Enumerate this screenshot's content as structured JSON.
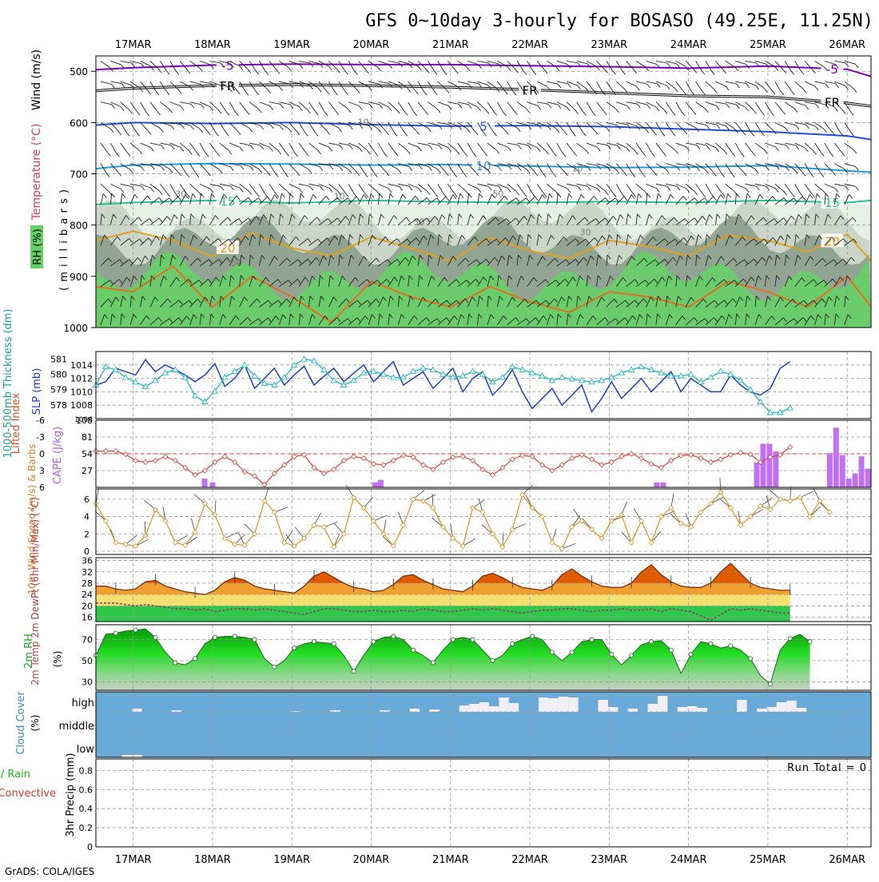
{
  "title": "GFS 0~10day 3-hourly for BOSASO (49.25E, 11.25N)",
  "credit": "GrADS: COLA/IGES",
  "colors": {
    "rh_dark": "#8ca08c",
    "rh_mid": "#c6d3c6",
    "rh_light": "#e6f0e6",
    "rh_green": "#66d066",
    "t_m5": "#8000c0",
    "t_0": "#000000",
    "t_5": "#1f4fd8",
    "t_10": "#1e9be0",
    "t_15": "#1fc78a",
    "t_20": "#e0a020",
    "t_25": "#e07020",
    "t_30": "#e0208a",
    "slp": "#1f3fc8",
    "thick": "#20b8b8",
    "li": "#e04040",
    "cape": "#c070f0",
    "wind10": "#e09020",
    "temp_fill_hot": "#e05a00",
    "temp_fill_warm": "#f0a030",
    "temp_fill_mild": "#f4e070",
    "temp_fill_cool": "#2fc84a",
    "rh2m": "#22cc22",
    "cloud": "#6aaad8",
    "cloud_gap": "#f2eef6",
    "grid": "#999999"
  },
  "chart_data": [
    {
      "type": "area",
      "panel": "upper-air",
      "title": "GFS 0~10day 3-hourly for BOSASO (49.25E, 11.25N)",
      "x_labels": [
        "17MAR",
        "18MAR",
        "19MAR",
        "20MAR",
        "21MAR",
        "22MAR",
        "23MAR",
        "24MAR",
        "25MAR",
        "26MAR"
      ],
      "xlim": [
        -0.47,
        9.3
      ],
      "ylabel_parts": [
        "RH (%)",
        "Temperature (°C)",
        "Wind (m/s)",
        "( m i l l i b a r s )"
      ],
      "yticks": [
        500,
        600,
        700,
        800,
        900,
        1000
      ],
      "ylim": [
        1000,
        470
      ],
      "rh_contour_labels": [
        "30",
        "50",
        "30",
        "50",
        "30",
        "10",
        "10",
        "10"
      ],
      "isotherms": [
        {
          "name": "-5",
          "labels": [
            "-5",
            "-5"
          ],
          "x": [
            -0.47,
            0,
            1,
            2,
            3,
            4,
            5,
            6,
            7,
            8,
            9,
            9.3
          ],
          "y": [
            497,
            493,
            488,
            486,
            487,
            487,
            489,
            491,
            494,
            490,
            496,
            510
          ]
        },
        {
          "name": "FR",
          "labels": [
            "FR",
            "FR",
            "FR"
          ],
          "x": [
            -0.47,
            0,
            1,
            2,
            3,
            4,
            5,
            6,
            7,
            8,
            9,
            9.3
          ],
          "y": [
            538,
            533,
            528,
            526,
            528,
            531,
            536,
            542,
            548,
            550,
            562,
            568
          ]
        },
        {
          "name": "5",
          "labels": [
            "5"
          ],
          "x": [
            -0.47,
            0,
            1,
            2,
            3,
            4,
            5,
            6,
            7,
            8,
            9,
            9.3
          ],
          "y": [
            605,
            600,
            602,
            600,
            604,
            607,
            606,
            608,
            613,
            618,
            626,
            633
          ]
        },
        {
          "name": "10",
          "labels": [
            "10"
          ],
          "x": [
            -0.47,
            0,
            1,
            2,
            3,
            4,
            5,
            6,
            7,
            8,
            9,
            9.3
          ],
          "y": [
            690,
            683,
            680,
            681,
            683,
            682,
            685,
            688,
            687,
            684,
            694,
            697
          ]
        },
        {
          "name": "15",
          "labels": [
            "15",
            "15"
          ],
          "x": [
            -0.47,
            0,
            1,
            2,
            3,
            4,
            5,
            6,
            7,
            8,
            9,
            9.3
          ],
          "y": [
            760,
            756,
            752,
            757,
            752,
            755,
            756,
            754,
            756,
            752,
            756,
            752
          ]
        },
        {
          "name": "20",
          "labels": [
            "20",
            "20"
          ],
          "x": [
            -0.47,
            0,
            0.5,
            1,
            1.5,
            2,
            2.5,
            3,
            3.5,
            4,
            4.5,
            5,
            5.5,
            6,
            6.5,
            7,
            7.5,
            8,
            8.5,
            9,
            9.3
          ],
          "y": [
            830,
            812,
            830,
            862,
            815,
            845,
            860,
            823,
            845,
            870,
            825,
            850,
            865,
            830,
            842,
            860,
            820,
            830,
            852,
            818,
            870
          ]
        },
        {
          "name": "25",
          "labels": [],
          "x": [
            -0.47,
            0,
            0.5,
            1,
            1.5,
            2,
            2.5,
            3,
            3.5,
            4,
            4.5,
            5,
            5.5,
            6,
            6.5,
            7,
            7.5,
            8,
            8.5,
            9,
            9.3
          ],
          "y": [
            920,
            930,
            880,
            960,
            900,
            940,
            990,
            910,
            940,
            960,
            920,
            950,
            970,
            930,
            940,
            960,
            910,
            930,
            960,
            900,
            960
          ]
        }
      ]
    },
    {
      "type": "line",
      "panel": "slp-thickness",
      "ylabel_left": "1000-500mb Thickness (dm)",
      "ylabel_right": "SLP (mb)",
      "yticks_left": [
        578,
        579,
        580,
        581
      ],
      "yticks_right": [
        1008,
        1010,
        1012,
        1014
      ],
      "ylim_right": [
        1006,
        1016
      ],
      "series": [
        {
          "name": "SLP (mb)",
          "x_step_hours": 3,
          "x_start": -0.47,
          "values": [
            1011,
            1011.5,
            1013.5,
            1013,
            1012.5,
            1014.8,
            1013,
            1014,
            1013.3,
            1012.5,
            1011.5,
            1012.5,
            1014.2,
            1010.8,
            1012,
            1014,
            1010.5,
            1012,
            1013.5,
            1011,
            1012.5,
            1013.8,
            1011,
            1012.3,
            1013.5,
            1011.5,
            1012.8,
            1014,
            1011.5,
            1013,
            1014.5,
            1011,
            1012,
            1013,
            1010.5,
            1012,
            1013.5,
            1010,
            1012,
            1013,
            1009.5,
            1011,
            1013.3,
            1010,
            1007.5,
            1009,
            1010.5,
            1008,
            1009.5,
            1011,
            1007,
            1009,
            1011.5,
            1009,
            1010.5,
            1012,
            1010,
            1011.5,
            1013,
            1010,
            1012,
            1011,
            1010,
            1010,
            1012.5,
            1011,
            1010,
            1009.5,
            1010.5,
            1013.5,
            1014.5
          ]
        },
        {
          "name": "Thickness (dm)",
          "x_step_hours": 3,
          "x_start": -0.47,
          "values": [
            579.3,
            580.5,
            580.3,
            579.8,
            579.5,
            579.2,
            579.6,
            580.1,
            580.3,
            579.8,
            578.6,
            578.2,
            578.9,
            579.8,
            580.2,
            580.6,
            579.9,
            579.4,
            579.3,
            579.8,
            580.6,
            581.0,
            580.9,
            580.3,
            579.6,
            579.3,
            579.6,
            580.1,
            580.2,
            580.0,
            579.8,
            579.8,
            580.2,
            580.4,
            580.3,
            580.0,
            579.8,
            579.9,
            580.2,
            580.0,
            579.5,
            579.8,
            580.5,
            580.3,
            580.1,
            579.9,
            579.6,
            579.8,
            579.7,
            579.6,
            579.5,
            579.6,
            579.8,
            580.1,
            580.3,
            580.5,
            580.3,
            580.1,
            579.9,
            579.9,
            580.0,
            579.5,
            579.8,
            580.2,
            580.0,
            579.6,
            579.0,
            578.2,
            577.5,
            577.5,
            577.8
          ]
        }
      ]
    },
    {
      "type": "bar",
      "panel": "lifted-cape",
      "ylabel_left": "Lifted Index",
      "ylabel_right": "CAPE (J/kg)",
      "yticks_li": [
        -6,
        -3,
        0,
        3,
        6
      ],
      "yticks_cape": [
        27,
        54,
        81,
        108
      ],
      "cape_bars": [
        {
          "x": 0.9,
          "value": 14
        },
        {
          "x": 1.0,
          "value": 8
        },
        {
          "x": 3.05,
          "value": 8
        },
        {
          "x": 3.12,
          "value": 12
        },
        {
          "x": 6.6,
          "value": 8
        },
        {
          "x": 6.68,
          "value": 8
        },
        {
          "x": 7.86,
          "value": 40
        },
        {
          "x": 7.94,
          "value": 70
        },
        {
          "x": 8.02,
          "value": 70
        },
        {
          "x": 8.1,
          "value": 58
        },
        {
          "x": 8.78,
          "value": 55
        },
        {
          "x": 8.86,
          "value": 96
        },
        {
          "x": 8.94,
          "value": 52
        },
        {
          "x": 9.02,
          "value": 14
        },
        {
          "x": 9.1,
          "value": 22
        },
        {
          "x": 9.18,
          "value": 50
        },
        {
          "x": 9.26,
          "value": 30
        }
      ],
      "lifted_index": [
        -0.5,
        -0.5,
        -0.5,
        0.1,
        1.2,
        1.5,
        1.2,
        0.5,
        1.2,
        2.5,
        3.8,
        3.0,
        1.5,
        0.5,
        1.5,
        3.2,
        4.0,
        5.5,
        3.5,
        2.0,
        0.5,
        0.2,
        2.5,
        3.5,
        2.8,
        1.2,
        0.5,
        0.8,
        1.8,
        2.0,
        1.2,
        0.3,
        0.6,
        2.0,
        2.8,
        1.5,
        0.6,
        0.5,
        1.2,
        2.8,
        3.8,
        2.5,
        1.0,
        0.3,
        0.5,
        2.0,
        3.0,
        2.0,
        0.8,
        0.2,
        1.0,
        2.0,
        1.5,
        0.5,
        0.0,
        0.8,
        1.8,
        2.5,
        1.2,
        0.3,
        0.2,
        0.8,
        1.5,
        1.0,
        0.2,
        -0.2,
        0.1,
        1.5,
        0.6,
        0.2,
        -1.2
      ]
    },
    {
      "type": "line",
      "panel": "wind10m",
      "ylabel": "10m Wind Speed (m/s) & Barbs",
      "yticks": [
        0,
        2,
        4,
        6
      ],
      "values": [
        5.5,
        3.5,
        1.0,
        0.8,
        0.6,
        1.8,
        4.8,
        3.5,
        1.0,
        0.7,
        2.2,
        5.5,
        4.2,
        1.5,
        0.8,
        0.7,
        2.0,
        5.8,
        4.5,
        1.0,
        0.6,
        1.5,
        3.0,
        2.8,
        0.5,
        2.0,
        6.2,
        5.0,
        3.5,
        2.0,
        0.6,
        3.0,
        6.0,
        5.8,
        5.0,
        2.8,
        1.5,
        0.6,
        5.0,
        4.5,
        2.0,
        0.5,
        2.5,
        6.5,
        5.0,
        4.0,
        1.0,
        0.3,
        2.8,
        3.5,
        2.5,
        1.5,
        3.5,
        4.2,
        1.0,
        3.5,
        1.0,
        4.0,
        5.0,
        3.2,
        2.8,
        4.5,
        5.5,
        6.8,
        5.0,
        3.0,
        4.0,
        5.2,
        4.8,
        6.0,
        5.8,
        6.2,
        4.0,
        5.8,
        4.5
      ]
    },
    {
      "type": "area",
      "panel": "temp2m",
      "ylabel": "2m Temp 2m DewPt (6hr Min/Max) (°C)",
      "yticks": [
        16,
        20,
        24,
        28,
        32,
        36
      ],
      "temp": [
        27,
        27,
        26,
        25.5,
        26,
        28.5,
        29,
        27,
        26,
        25,
        24.5,
        24,
        25.5,
        28.5,
        30,
        29,
        27,
        26,
        25.5,
        25,
        24.5,
        27,
        30.5,
        32,
        30,
        28,
        26.5,
        26,
        25,
        25.5,
        27.5,
        30.5,
        31,
        29,
        27.5,
        26,
        25.5,
        25,
        27,
        30.5,
        31.5,
        30,
        28,
        26.5,
        26,
        25.5,
        27,
        31,
        33,
        30.5,
        28.5,
        27,
        26.5,
        26.5,
        28,
        32,
        34.5,
        31,
        28.5,
        27,
        26.5,
        26.5,
        28,
        32,
        35,
        31.5,
        28,
        26.5,
        26,
        25.5,
        25.5
      ],
      "dewpt": [
        21,
        21,
        21,
        20.5,
        20,
        20.5,
        20,
        19.5,
        19,
        19,
        18.5,
        19,
        18,
        18.5,
        19,
        19,
        18.5,
        19,
        18.5,
        18,
        17.5,
        17,
        18,
        19,
        19,
        18.5,
        18,
        18,
        18.5,
        18,
        18,
        18.5,
        18,
        19,
        18.5,
        18,
        18,
        18.5,
        19,
        18.5,
        19,
        18.5,
        18,
        17.5,
        18,
        18.5,
        18.5,
        19,
        19,
        18.5,
        18,
        18.5,
        18.5,
        19,
        18.5,
        18.5,
        19,
        18,
        19,
        18.5,
        18,
        16.5,
        15,
        17,
        19,
        18.5,
        19,
        18.5,
        18,
        17.5,
        17.5
      ]
    },
    {
      "type": "area",
      "panel": "rh2m",
      "ylabel": "2m RH (%)",
      "yticks": [
        30,
        50,
        70
      ],
      "values": [
        55,
        75,
        76,
        78,
        79,
        80,
        72,
        58,
        48,
        46,
        52,
        66,
        72,
        73,
        73,
        72,
        70,
        52,
        44,
        50,
        62,
        66,
        68,
        67,
        66,
        55,
        40,
        55,
        68,
        72,
        73,
        70,
        60,
        55,
        48,
        60,
        70,
        72,
        70,
        60,
        50,
        55,
        66,
        70,
        73,
        70,
        58,
        50,
        58,
        68,
        70,
        70,
        56,
        46,
        55,
        65,
        68,
        69,
        60,
        38,
        56,
        68,
        66,
        62,
        64,
        60,
        52,
        36,
        28,
        60,
        71,
        75,
        68
      ]
    },
    {
      "type": "bar",
      "panel": "cloud",
      "ylabel": "Cloud Cover (%)",
      "level_labels": [
        "high",
        "middle",
        "low"
      ],
      "high_cloud_gap": [
        0,
        0,
        0,
        4,
        0,
        0,
        0,
        2,
        0,
        0,
        0,
        0,
        0,
        0,
        0,
        0,
        0,
        0,
        0,
        1,
        0,
        0,
        0,
        2,
        0,
        0,
        0,
        0,
        2,
        0,
        0,
        4,
        0,
        3,
        0,
        0,
        8,
        10,
        12,
        7,
        18,
        11,
        0,
        0,
        18,
        17,
        19,
        18,
        0,
        0,
        15,
        6,
        0,
        4,
        0,
        10,
        20,
        0,
        6,
        7,
        5,
        0,
        0,
        0,
        15,
        0,
        4,
        6,
        12,
        14,
        5,
        0
      ],
      "low_cloud_gap": [
        0,
        0,
        3,
        3,
        0,
        0,
        0,
        0,
        0,
        0,
        0,
        0,
        0,
        0,
        0,
        0,
        0,
        0,
        0,
        0,
        0,
        0,
        0,
        0,
        0,
        0,
        0,
        0,
        0,
        0,
        0,
        0,
        0,
        0,
        0,
        0,
        0,
        0,
        0,
        0,
        0,
        0,
        0,
        0,
        0,
        0,
        0,
        0,
        0,
        0,
        0,
        0,
        0,
        0,
        0,
        0,
        0,
        0,
        0,
        0,
        0,
        0,
        0,
        0,
        0,
        0,
        0,
        0,
        0,
        0,
        0,
        0
      ]
    },
    {
      "type": "bar",
      "panel": "precip",
      "ylabel_parts": [
        "Total / Rain",
        "Convective",
        "3hr Precip (mm)"
      ],
      "yticks": [
        0,
        0.2,
        0.4,
        0.6,
        0.8
      ],
      "run_total_label": "Run Total = 0",
      "values": []
    }
  ]
}
